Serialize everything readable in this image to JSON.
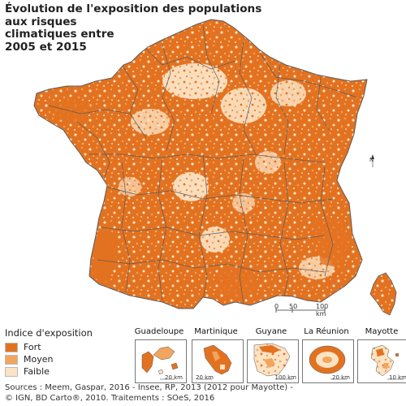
{
  "title_lines": [
    "Évolution de l'exposition des populations aux risques",
    "climatiques entre",
    "2005 et 2015"
  ],
  "colors": {
    "fort": "#e37220",
    "moyen": "#f2a55e",
    "faible": "#fbe3c4",
    "border": "#5a5a5a"
  },
  "legend": {
    "title": "Indice d'exposition",
    "items": [
      {
        "label": "Fort",
        "color": "#e37220"
      },
      {
        "label": "Moyen",
        "color": "#f2a55e"
      },
      {
        "label": "Faible",
        "color": "#fbe3c4"
      }
    ]
  },
  "scale": {
    "ticks": [
      "0",
      "50",
      "100 km"
    ]
  },
  "north_label": "N",
  "insets": [
    {
      "name": "Guadeloupe",
      "scale": "20 km"
    },
    {
      "name": "Martinique",
      "scale": "20 km"
    },
    {
      "name": "Guyane",
      "scale": "100 km"
    },
    {
      "name": "La Réunion",
      "scale": "20 km"
    },
    {
      "name": "Mayotte",
      "scale": "10 km"
    }
  ],
  "sources_lines": [
    "Sources : Meem, Gaspar, 2016 - Insee, RP, 2013 (2012 pour Mayotte) -",
    "© IGN, BD Carto®, 2010. Traitements : SOeS, 2016"
  ]
}
